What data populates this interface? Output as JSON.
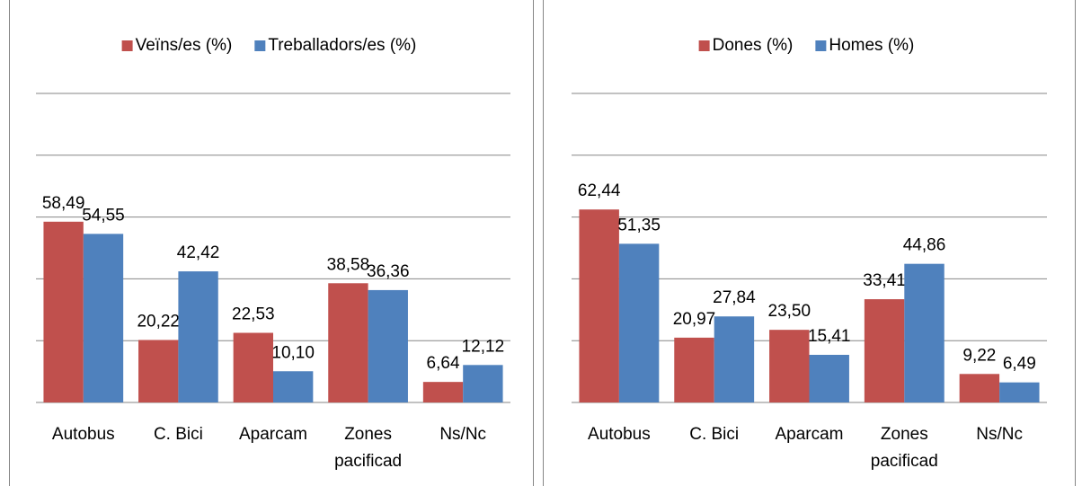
{
  "chart_data": [
    {
      "type": "bar",
      "categories": [
        "Autobus",
        "C. Bici",
        "Aparcam",
        "Zones pacificad",
        "Ns/Nc"
      ],
      "series": [
        {
          "name": "Veïns/es (%)",
          "color": "#c0504d",
          "values": [
            58.49,
            20.22,
            22.53,
            38.58,
            6.64
          ],
          "value_labels": [
            "58,49",
            "20,22",
            "22,53",
            "38,58",
            "6,64"
          ]
        },
        {
          "name": "Treballadors/es (%)",
          "color": "#4f81bd",
          "values": [
            54.55,
            42.42,
            10.1,
            36.36,
            12.12
          ],
          "value_labels": [
            "54,55",
            "42,42",
            "10,10",
            "36,36",
            "12,12"
          ]
        }
      ],
      "ylim": [
        0,
        100
      ],
      "yticks": [
        0,
        20,
        40,
        60,
        80,
        100
      ],
      "grid": true,
      "legend": "top"
    },
    {
      "type": "bar",
      "categories": [
        "Autobus",
        "C. Bici",
        "Aparcam",
        "Zones pacificad",
        "Ns/Nc"
      ],
      "series": [
        {
          "name": "Dones (%)",
          "color": "#c0504d",
          "values": [
            62.44,
            20.97,
            23.5,
            33.41,
            9.22
          ],
          "value_labels": [
            "62,44",
            "20,97",
            "23,50",
            "33,41",
            "9,22"
          ]
        },
        {
          "name": "Homes (%)",
          "color": "#4f81bd",
          "values": [
            51.35,
            27.84,
            15.41,
            44.86,
            6.49
          ],
          "value_labels": [
            "51,35",
            "27,84",
            "15,41",
            "44,86",
            "6,49"
          ]
        }
      ],
      "ylim": [
        0,
        100
      ],
      "yticks": [
        0,
        20,
        40,
        60,
        80,
        100
      ],
      "grid": true,
      "legend": "top"
    }
  ]
}
